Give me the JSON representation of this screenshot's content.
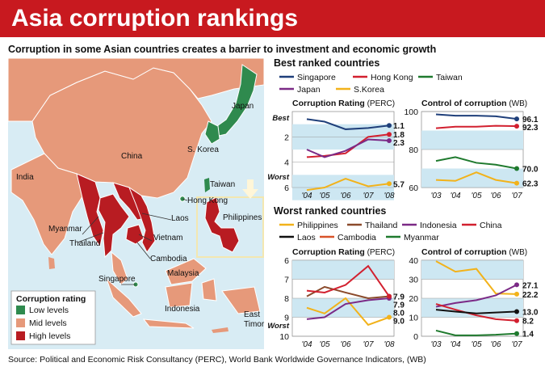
{
  "title": "Asia corruption rankings",
  "subtitle": "Corruption in some Asian countries creates a barrier to investment and economic growth",
  "source": "Source: Political and Economic Risk Consultancy (PERC), World Bank Worldwide Governance Indicators, (WB)",
  "colors": {
    "title_bar": "#c8191f",
    "low": "#2f8a4e",
    "mid": "#e6997a",
    "high": "#b81c22",
    "sea": "#d8ecf4",
    "band": "#cde7f2"
  },
  "map": {
    "labels": [
      "Japan",
      "China",
      "S. Korea",
      "Taiwan",
      "Hong Kong",
      "India",
      "Myanmar",
      "Laos",
      "Philippines",
      "Thailand",
      "Vietnam",
      "Cambodia",
      "Singapore",
      "Malaysia",
      "Indonesia",
      "East Timor"
    ],
    "legend_title": "Corruption rating",
    "legend": [
      "Low levels",
      "Mid levels",
      "High levels"
    ],
    "hongkong_inset_icon": "down-arrow-icon"
  },
  "chart_data": [
    {
      "id": "best_perc",
      "group_title": "Best ranked countries",
      "title": "Corruption Rating",
      "title_source": "(PERC)",
      "type": "line",
      "x": [
        "'04",
        "'05",
        "'06",
        "'07",
        "'08"
      ],
      "ylim": [
        0,
        6
      ],
      "y_inverted": true,
      "yticks": [
        "2",
        "4",
        "6"
      ],
      "y_top_label": "Best",
      "y_bottom_label": "Worst",
      "series": [
        {
          "name": "Singapore",
          "color": "#1f3f7a",
          "values": [
            0.6,
            0.8,
            1.4,
            1.3,
            1.1
          ]
        },
        {
          "name": "Hong Kong",
          "color": "#d2202f",
          "values": [
            3.6,
            3.5,
            3.3,
            2.0,
            1.8
          ]
        },
        {
          "name": "Taiwan",
          "color": "#1f7a2e",
          "values": [
            null,
            null,
            null,
            null,
            null
          ]
        },
        {
          "name": "Japan",
          "color": "#7b2a86",
          "values": [
            3.0,
            3.6,
            3.1,
            2.2,
            2.3
          ]
        },
        {
          "name": "S.Korea",
          "color": "#f2b21a",
          "values": [
            6.2,
            6.0,
            5.3,
            5.9,
            5.7
          ]
        }
      ],
      "end_labels": [
        "1.1",
        "1.8",
        "2.3",
        "5.7"
      ]
    },
    {
      "id": "best_wb",
      "title": "Control of corruption",
      "title_source": "(WB)",
      "type": "line",
      "x": [
        "'03",
        "'04",
        "'05",
        "'06",
        "'07"
      ],
      "ylim": [
        60,
        100
      ],
      "yticks": [
        "60",
        "80",
        "100"
      ],
      "series": [
        {
          "name": "Singapore",
          "color": "#1f3f7a",
          "values": [
            98.5,
            97.8,
            97.8,
            97.5,
            96.1
          ]
        },
        {
          "name": "Hong Kong",
          "color": "#d2202f",
          "values": [
            91.2,
            92.0,
            92.0,
            92.5,
            92.3
          ]
        },
        {
          "name": "Taiwan",
          "color": "#1f7a2e",
          "values": [
            74.0,
            76.0,
            73.0,
            72.0,
            70.0
          ]
        },
        {
          "name": "S.Korea",
          "color": "#f2b21a",
          "values": [
            64.0,
            63.5,
            68.0,
            64.0,
            62.3
          ]
        }
      ],
      "end_labels": [
        "96.1",
        "92.3",
        "70.0",
        "62.3"
      ]
    },
    {
      "id": "worst_perc",
      "group_title": "Worst ranked countries",
      "title": "Corruption Rating",
      "title_source": "(PERC)",
      "type": "line",
      "x": [
        "'04",
        "'05",
        "'06",
        "'07",
        "'08"
      ],
      "ylim": [
        6,
        10
      ],
      "y_inverted": true,
      "yticks": [
        "6",
        "7",
        "8",
        "9",
        "10"
      ],
      "y_bottom_label": "Worst",
      "series": [
        {
          "name": "Philippines",
          "color": "#f2b21a",
          "values": [
            8.5,
            8.8,
            8.0,
            9.4,
            9.0
          ]
        },
        {
          "name": "Thailand",
          "color": "#8b4a2b",
          "values": [
            7.9,
            7.4,
            7.7,
            8.0,
            7.9
          ]
        },
        {
          "name": "Indonesia",
          "color": "#7b2a86",
          "values": [
            9.1,
            9.0,
            8.3,
            8.1,
            8.0
          ]
        },
        {
          "name": "China",
          "color": "#d2202f",
          "values": [
            7.6,
            7.7,
            7.3,
            6.3,
            7.9
          ]
        },
        {
          "name": "Laos",
          "color": "#111111",
          "values": [
            null,
            null,
            null,
            null,
            null
          ]
        },
        {
          "name": "Cambodia",
          "color": "#d8532a",
          "values": [
            null,
            null,
            null,
            null,
            null
          ]
        },
        {
          "name": "Myanmar",
          "color": "#1f7a2e",
          "values": [
            null,
            null,
            null,
            null,
            null
          ]
        }
      ],
      "end_labels": [
        "7.9",
        "7.9",
        "8.0",
        "9.0"
      ]
    },
    {
      "id": "worst_wb",
      "title": "Control of corruption",
      "title_source": "(WB)",
      "type": "line",
      "x": [
        "'03",
        "'04",
        "'05",
        "'06",
        "'07"
      ],
      "ylim": [
        0,
        40
      ],
      "yticks": [
        "0",
        "10",
        "20",
        "30",
        "40"
      ],
      "series": [
        {
          "name": "Philippines",
          "color": "#f2b21a",
          "values": [
            39.5,
            34.0,
            35.5,
            22.5,
            22.2
          ]
        },
        {
          "name": "Thailand",
          "color": "#8b4a2b",
          "values": [
            null,
            null,
            null,
            null,
            null
          ]
        },
        {
          "name": "Indonesia",
          "color": "#7b2a86",
          "values": [
            15.5,
            17.5,
            19.0,
            21.5,
            27.1
          ]
        },
        {
          "name": "China",
          "color": "#d2202f",
          "values": [
            17.0,
            14.0,
            11.0,
            9.0,
            8.2
          ]
        },
        {
          "name": "Laos",
          "color": "#111111",
          "values": [
            14.0,
            13.0,
            12.0,
            12.5,
            13.0
          ]
        },
        {
          "name": "Cambodia",
          "color": "#d8532a",
          "values": [
            null,
            null,
            null,
            null,
            null
          ]
        },
        {
          "name": "Myanmar",
          "color": "#1f7a2e",
          "values": [
            3.0,
            0.5,
            0.5,
            0.8,
            1.4
          ]
        }
      ],
      "end_labels": [
        "27.1",
        "22.2",
        "13.0",
        "8.2",
        "1.4"
      ]
    }
  ]
}
